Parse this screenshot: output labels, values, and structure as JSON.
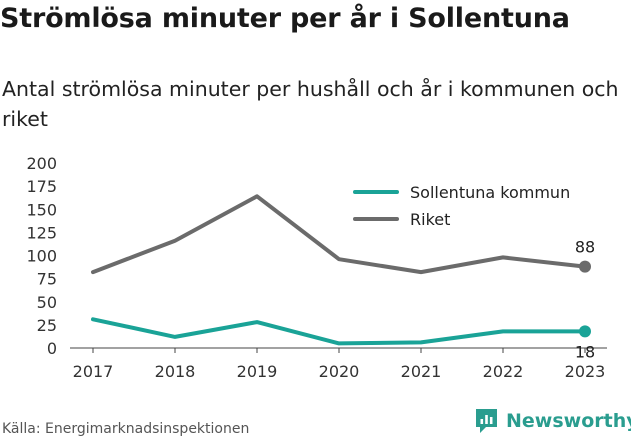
{
  "header": {
    "title": "Strömlösa minuter per år i Sollentuna",
    "subtitle": "Antal strömlösa minuter per hushåll och år i kommunen och riket"
  },
  "footer": {
    "source": "Källa: Energimarknadsinspektionen",
    "brand_name": "Newsworthy",
    "brand_icon": "newsworthy-logo-icon",
    "brand_color": "#2a9d8f"
  },
  "chart_data": {
    "type": "line",
    "title": "Strömlösa minuter per år i Sollentuna",
    "subtitle": "Antal strömlösa minuter per hushåll och år i kommunen och riket",
    "xlabel": "",
    "ylabel": "",
    "categories": [
      "2017",
      "2018",
      "2019",
      "2020",
      "2021",
      "2022",
      "2023"
    ],
    "yticks": [
      0,
      25,
      50,
      75,
      100,
      125,
      150,
      175,
      200
    ],
    "ylim": [
      0,
      200
    ],
    "grid": false,
    "legend_position": "top-right",
    "series": [
      {
        "name": "Sollentuna kommun",
        "color": "#1aa397",
        "values": [
          31,
          12,
          28,
          5,
          6,
          18,
          18
        ],
        "end_label": "18"
      },
      {
        "name": "Riket",
        "color": "#6b6b6b",
        "values": [
          82,
          116,
          164,
          96,
          82,
          98,
          88
        ],
        "end_label": "88"
      }
    ]
  }
}
